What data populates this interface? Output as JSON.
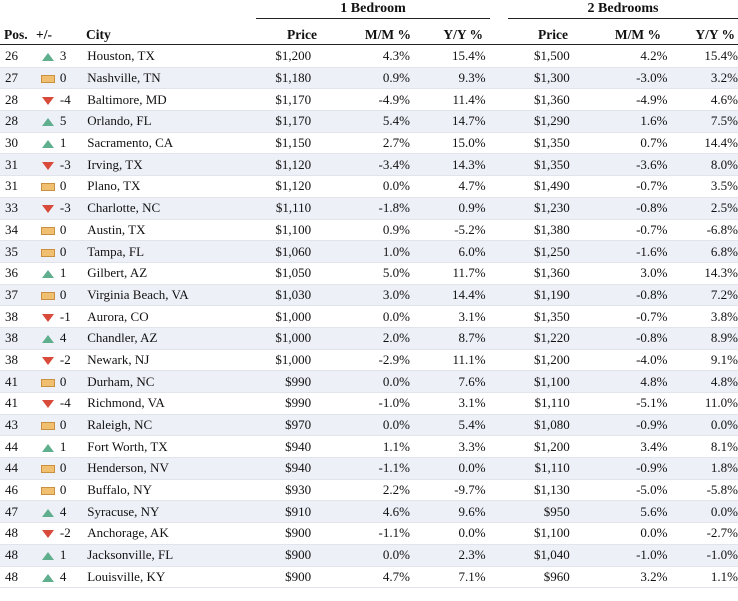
{
  "groups": {
    "one_bedroom": "1 Bedroom",
    "two_bedrooms": "2 Bedrooms"
  },
  "columns": {
    "pos": "Pos.",
    "change": "+/-",
    "city": "City",
    "price": "Price",
    "mm": "M/M %",
    "yy": "Y/Y %"
  },
  "rows": [
    {
      "pos": "26",
      "dir": "up",
      "chg": "3",
      "city": "Houston, TX",
      "p1": "$1,200",
      "m1": "4.3%",
      "y1": "15.4%",
      "p2": "$1,500",
      "m2": "4.2%",
      "y2": "15.4%"
    },
    {
      "pos": "27",
      "dir": "flat",
      "chg": "0",
      "city": "Nashville, TN",
      "p1": "$1,180",
      "m1": "0.9%",
      "y1": "9.3%",
      "p2": "$1,300",
      "m2": "-3.0%",
      "y2": "3.2%"
    },
    {
      "pos": "28",
      "dir": "down",
      "chg": "-4",
      "city": "Baltimore, MD",
      "p1": "$1,170",
      "m1": "-4.9%",
      "y1": "11.4%",
      "p2": "$1,360",
      "m2": "-4.9%",
      "y2": "4.6%"
    },
    {
      "pos": "28",
      "dir": "up",
      "chg": "5",
      "city": "Orlando, FL",
      "p1": "$1,170",
      "m1": "5.4%",
      "y1": "14.7%",
      "p2": "$1,290",
      "m2": "1.6%",
      "y2": "7.5%"
    },
    {
      "pos": "30",
      "dir": "up",
      "chg": "1",
      "city": "Sacramento, CA",
      "p1": "$1,150",
      "m1": "2.7%",
      "y1": "15.0%",
      "p2": "$1,350",
      "m2": "0.7%",
      "y2": "14.4%"
    },
    {
      "pos": "31",
      "dir": "down",
      "chg": "-3",
      "city": "Irving, TX",
      "p1": "$1,120",
      "m1": "-3.4%",
      "y1": "14.3%",
      "p2": "$1,350",
      "m2": "-3.6%",
      "y2": "8.0%"
    },
    {
      "pos": "31",
      "dir": "flat",
      "chg": "0",
      "city": "Plano, TX",
      "p1": "$1,120",
      "m1": "0.0%",
      "y1": "4.7%",
      "p2": "$1,490",
      "m2": "-0.7%",
      "y2": "3.5%"
    },
    {
      "pos": "33",
      "dir": "down",
      "chg": "-3",
      "city": "Charlotte, NC",
      "p1": "$1,110",
      "m1": "-1.8%",
      "y1": "0.9%",
      "p2": "$1,230",
      "m2": "-0.8%",
      "y2": "2.5%"
    },
    {
      "pos": "34",
      "dir": "flat",
      "chg": "0",
      "city": "Austin, TX",
      "p1": "$1,100",
      "m1": "0.9%",
      "y1": "-5.2%",
      "p2": "$1,380",
      "m2": "-0.7%",
      "y2": "-6.8%"
    },
    {
      "pos": "35",
      "dir": "flat",
      "chg": "0",
      "city": "Tampa, FL",
      "p1": "$1,060",
      "m1": "1.0%",
      "y1": "6.0%",
      "p2": "$1,250",
      "m2": "-1.6%",
      "y2": "6.8%"
    },
    {
      "pos": "36",
      "dir": "up",
      "chg": "1",
      "city": "Gilbert, AZ",
      "p1": "$1,050",
      "m1": "5.0%",
      "y1": "11.7%",
      "p2": "$1,360",
      "m2": "3.0%",
      "y2": "14.3%"
    },
    {
      "pos": "37",
      "dir": "flat",
      "chg": "0",
      "city": "Virginia Beach, VA",
      "p1": "$1,030",
      "m1": "3.0%",
      "y1": "14.4%",
      "p2": "$1,190",
      "m2": "-0.8%",
      "y2": "7.2%"
    },
    {
      "pos": "38",
      "dir": "down",
      "chg": "-1",
      "city": "Aurora, CO",
      "p1": "$1,000",
      "m1": "0.0%",
      "y1": "3.1%",
      "p2": "$1,350",
      "m2": "-0.7%",
      "y2": "3.8%"
    },
    {
      "pos": "38",
      "dir": "up",
      "chg": "4",
      "city": "Chandler, AZ",
      "p1": "$1,000",
      "m1": "2.0%",
      "y1": "8.7%",
      "p2": "$1,220",
      "m2": "-0.8%",
      "y2": "8.9%"
    },
    {
      "pos": "38",
      "dir": "down",
      "chg": "-2",
      "city": "Newark, NJ",
      "p1": "$1,000",
      "m1": "-2.9%",
      "y1": "11.1%",
      "p2": "$1,200",
      "m2": "-4.0%",
      "y2": "9.1%"
    },
    {
      "pos": "41",
      "dir": "flat",
      "chg": "0",
      "city": "Durham, NC",
      "p1": "$990",
      "m1": "0.0%",
      "y1": "7.6%",
      "p2": "$1,100",
      "m2": "4.8%",
      "y2": "4.8%"
    },
    {
      "pos": "41",
      "dir": "down",
      "chg": "-4",
      "city": "Richmond, VA",
      "p1": "$990",
      "m1": "-1.0%",
      "y1": "3.1%",
      "p2": "$1,110",
      "m2": "-5.1%",
      "y2": "11.0%"
    },
    {
      "pos": "43",
      "dir": "flat",
      "chg": "0",
      "city": "Raleigh, NC",
      "p1": "$970",
      "m1": "0.0%",
      "y1": "5.4%",
      "p2": "$1,080",
      "m2": "-0.9%",
      "y2": "0.0%"
    },
    {
      "pos": "44",
      "dir": "up",
      "chg": "1",
      "city": "Fort Worth, TX",
      "p1": "$940",
      "m1": "1.1%",
      "y1": "3.3%",
      "p2": "$1,200",
      "m2": "3.4%",
      "y2": "8.1%"
    },
    {
      "pos": "44",
      "dir": "flat",
      "chg": "0",
      "city": "Henderson, NV",
      "p1": "$940",
      "m1": "-1.1%",
      "y1": "0.0%",
      "p2": "$1,110",
      "m2": "-0.9%",
      "y2": "1.8%"
    },
    {
      "pos": "46",
      "dir": "flat",
      "chg": "0",
      "city": "Buffalo, NY",
      "p1": "$930",
      "m1": "2.2%",
      "y1": "-9.7%",
      "p2": "$1,130",
      "m2": "-5.0%",
      "y2": "-5.8%"
    },
    {
      "pos": "47",
      "dir": "up",
      "chg": "4",
      "city": "Syracuse, NY",
      "p1": "$910",
      "m1": "4.6%",
      "y1": "9.6%",
      "p2": "$950",
      "m2": "5.6%",
      "y2": "0.0%"
    },
    {
      "pos": "48",
      "dir": "down",
      "chg": "-2",
      "city": "Anchorage, AK",
      "p1": "$900",
      "m1": "-1.1%",
      "y1": "0.0%",
      "p2": "$1,100",
      "m2": "0.0%",
      "y2": "-2.7%"
    },
    {
      "pos": "48",
      "dir": "up",
      "chg": "1",
      "city": "Jacksonville, FL",
      "p1": "$900",
      "m1": "0.0%",
      "y1": "2.3%",
      "p2": "$1,040",
      "m2": "-1.0%",
      "y2": "-1.0%"
    },
    {
      "pos": "48",
      "dir": "up",
      "chg": "4",
      "city": "Louisville, KY",
      "p1": "$900",
      "m1": "4.7%",
      "y1": "7.1%",
      "p2": "$960",
      "m2": "3.2%",
      "y2": "1.1%"
    }
  ],
  "icons": {
    "up": "triangle-up-icon",
    "down": "triangle-down-icon",
    "flat": "dash-icon"
  },
  "colors": {
    "up": "#5fae8e",
    "down": "#d84a3a",
    "flat": "#f0c070",
    "alt_row": "#eef0f8"
  }
}
